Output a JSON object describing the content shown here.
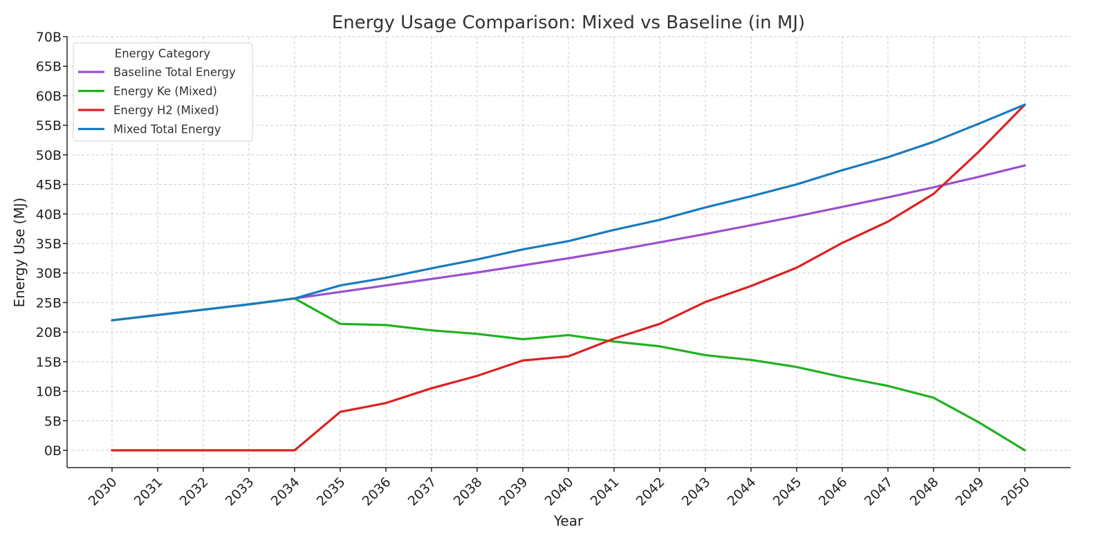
{
  "chart_data": {
    "type": "line",
    "title": "Energy Usage Comparison: Mixed vs Baseline (in MJ)",
    "xlabel": "Year",
    "ylabel": "Energy Use (MJ)",
    "x": [
      2030,
      2031,
      2032,
      2033,
      2034,
      2035,
      2036,
      2037,
      2038,
      2039,
      2040,
      2041,
      2042,
      2043,
      2044,
      2045,
      2046,
      2047,
      2048,
      2049,
      2050
    ],
    "x_tick_labels": [
      "2030",
      "2031",
      "2032",
      "2033",
      "2034",
      "2035",
      "2036",
      "2037",
      "2038",
      "2039",
      "2040",
      "2041",
      "2042",
      "2043",
      "2044",
      "2045",
      "2046",
      "2047",
      "2048",
      "2049",
      "2050"
    ],
    "ylim": [
      -3,
      70
    ],
    "y_ticks": [
      0,
      5,
      10,
      15,
      20,
      25,
      30,
      35,
      40,
      45,
      50,
      55,
      60,
      65,
      70
    ],
    "y_tick_labels": [
      "0B",
      "5B",
      "10B",
      "15B",
      "20B",
      "25B",
      "30B",
      "35B",
      "40B",
      "45B",
      "50B",
      "55B",
      "60B",
      "65B",
      "70B"
    ],
    "y_unit": "billions of MJ",
    "grid": true,
    "legend": {
      "title": "Energy Category",
      "position": "top-left"
    },
    "series": [
      {
        "name": "Baseline Total Energy",
        "color": "#9b4fd1",
        "values": [
          22.0,
          22.9,
          23.8,
          24.7,
          25.7,
          26.8,
          27.9,
          29.0,
          30.1,
          31.3,
          32.5,
          33.8,
          35.2,
          36.6,
          38.1,
          39.6,
          41.2,
          42.8,
          44.5,
          46.3,
          48.2
        ]
      },
      {
        "name": "Energy Ke (Mixed)",
        "color": "#1fb11f",
        "values": [
          22.0,
          22.9,
          23.8,
          24.7,
          25.7,
          21.4,
          21.2,
          20.3,
          19.7,
          18.8,
          19.5,
          18.4,
          17.6,
          16.1,
          15.3,
          14.1,
          12.4,
          10.9,
          8.9,
          4.7,
          0.0
        ]
      },
      {
        "name": "Energy H2 (Mixed)",
        "color": "#dd2020",
        "values": [
          0.0,
          0.0,
          0.0,
          0.0,
          0.0,
          6.5,
          8.0,
          10.5,
          12.6,
          15.2,
          15.9,
          18.9,
          21.4,
          25.1,
          27.8,
          30.9,
          35.1,
          38.7,
          43.4,
          50.6,
          58.5
        ]
      },
      {
        "name": "Mixed Total Energy",
        "color": "#1a7bbf",
        "values": [
          22.0,
          22.9,
          23.8,
          24.7,
          25.7,
          27.9,
          29.2,
          30.8,
          32.3,
          34.0,
          35.4,
          37.3,
          39.0,
          41.1,
          43.0,
          45.0,
          47.4,
          49.6,
          52.2,
          55.3,
          58.5
        ]
      }
    ]
  }
}
